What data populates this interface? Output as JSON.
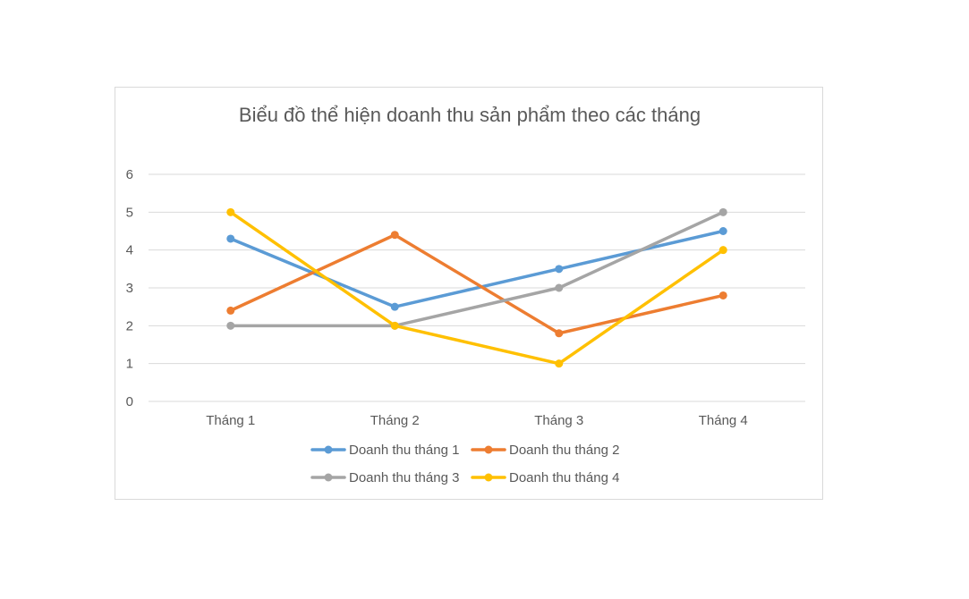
{
  "chart_data": {
    "type": "line",
    "title": "Biểu đồ thể hiện doanh thu sản phẩm theo các tháng",
    "xlabel": "",
    "ylabel": "",
    "categories": [
      "Tháng 1",
      "Tháng 2",
      "Tháng 3",
      "Tháng 4"
    ],
    "y_ticks": [
      "0",
      "1",
      "2",
      "3",
      "4",
      "5",
      "6"
    ],
    "ylim": [
      0,
      6
    ],
    "grid": true,
    "legend_position": "bottom",
    "series": [
      {
        "name": "Doanh thu tháng 1",
        "color": "#5b9bd5",
        "values": [
          4.3,
          2.5,
          3.5,
          4.5
        ]
      },
      {
        "name": "Doanh thu tháng 2",
        "color": "#ed7d31",
        "values": [
          2.4,
          4.4,
          1.8,
          2.8
        ]
      },
      {
        "name": "Doanh thu tháng 3",
        "color": "#a5a5a5",
        "values": [
          2.0,
          2.0,
          3.0,
          5.0
        ]
      },
      {
        "name": "Doanh thu tháng 4",
        "color": "#ffc000",
        "values": [
          5.0,
          2.0,
          1.0,
          4.0
        ]
      }
    ]
  }
}
